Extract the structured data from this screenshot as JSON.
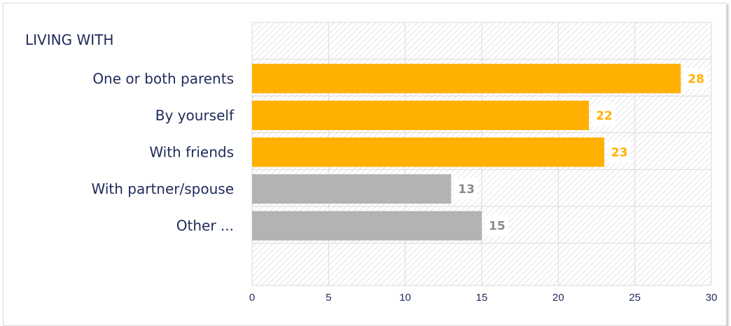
{
  "chart_data": {
    "type": "bar",
    "orientation": "horizontal",
    "heading": "LIVING WITH",
    "categories": [
      "One or both parents",
      "By yourself",
      "With friends",
      "With partner/spouse",
      "Other ..."
    ],
    "values": [
      28,
      22,
      23,
      13,
      15
    ],
    "colors": [
      "#FFB000",
      "#FFB000",
      "#FFB000",
      "#B3B3B3",
      "#B3B3B3"
    ],
    "label_colors": [
      "#FFB000",
      "#FFB000",
      "#FFB000",
      "#8C8C8C",
      "#8C8C8C"
    ],
    "xlim": [
      0,
      30
    ],
    "xticks": [
      0,
      5,
      10,
      15,
      20,
      25,
      30
    ],
    "grid": true,
    "background_pattern": "diagonal-hatch"
  }
}
